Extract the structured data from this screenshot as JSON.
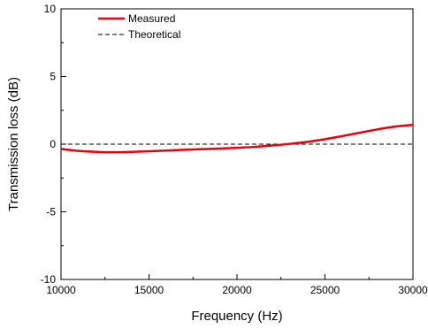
{
  "chart_data": {
    "type": "line",
    "title": "",
    "xlabel": "Frequency (Hz)",
    "ylabel": "Transmission loss (dB)",
    "xlim": [
      10000,
      30000
    ],
    "ylim": [
      -10,
      10
    ],
    "xticks": [
      10000,
      15000,
      20000,
      25000,
      30000
    ],
    "yticks": [
      -10,
      -5,
      0,
      5,
      10
    ],
    "x_minor_step": 2500,
    "y_minor_step": 2.5,
    "grid": false,
    "legend_position": "top-left",
    "series": [
      {
        "name": "Measured",
        "color": "#e8000b",
        "line_style": "solid",
        "x": [
          10000,
          11000,
          12000,
          13000,
          14000,
          15000,
          16000,
          17000,
          18000,
          19000,
          20000,
          21000,
          22000,
          23000,
          24000,
          25000,
          26000,
          27000,
          28000,
          29000,
          30000
        ],
        "y": [
          -0.35,
          -0.5,
          -0.57,
          -0.6,
          -0.57,
          -0.52,
          -0.47,
          -0.42,
          -0.37,
          -0.33,
          -0.27,
          -0.2,
          -0.1,
          0.02,
          0.17,
          0.37,
          0.6,
          0.85,
          1.1,
          1.3,
          1.43
        ]
      },
      {
        "name": "Theoretical",
        "color": "#000000",
        "line_style": "dashed",
        "x": [
          10000,
          30000
        ],
        "y": [
          0,
          0
        ]
      }
    ]
  }
}
